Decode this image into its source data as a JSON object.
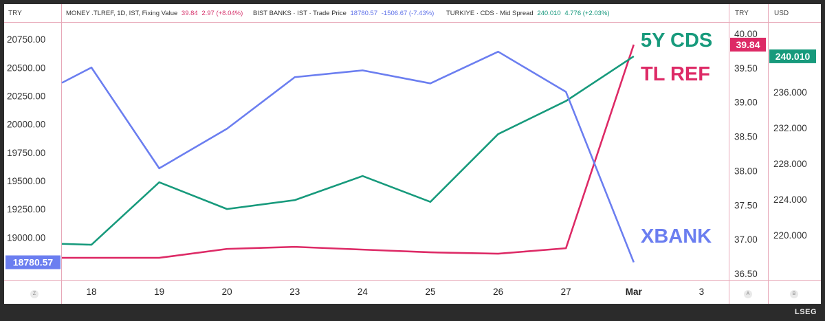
{
  "header": {
    "left_unit": "TRY",
    "right_unit_1": "TRY",
    "right_unit_2": "USD",
    "legend": [
      {
        "label": "MONEY .TLREF, 1D, IST, Fixing Value",
        "value": "39.84",
        "change": "2.97 (+8.04%)",
        "color": "#d6336c"
      },
      {
        "label": "BIST BANKS · IST · Trade Price",
        "value": "18780.57",
        "change": "-1506.67 (-7.43%)",
        "color": "#5b6ee8"
      },
      {
        "label": "TURKIYE · CDS · Mid Spread",
        "value": "240.010",
        "change": "4.776 (+2.03%)",
        "color": "#12967a"
      }
    ]
  },
  "corners": {
    "left": "Z",
    "mid": "A",
    "right": "B"
  },
  "brand": "LSEG",
  "colors": {
    "xbank": "#6b7ef0",
    "tlref": "#dd2a66",
    "cds": "#179a7c"
  },
  "chart_data": {
    "type": "line",
    "x": [
      "18",
      "19",
      "20",
      "23",
      "24",
      "25",
      "26",
      "27",
      "Mar"
    ],
    "x_ticks": [
      "18",
      "19",
      "20",
      "23",
      "24",
      "25",
      "26",
      "27",
      "Mar",
      "3"
    ],
    "series": [
      {
        "name": "XBANK",
        "axis": "left",
        "values": [
          20500,
          19610,
          19960,
          20415,
          20475,
          20360,
          20640,
          20285,
          18780.57
        ],
        "prefix_value": 20365
      },
      {
        "name": "TL REF",
        "axis": "right1",
        "values": [
          36.73,
          36.73,
          36.86,
          36.89,
          36.85,
          36.81,
          36.79,
          36.87,
          39.84
        ],
        "prefix_value": 36.73
      },
      {
        "name": "5Y CDS",
        "axis": "right2",
        "values": [
          218.9,
          225.9,
          222.9,
          223.9,
          226.6,
          223.7,
          231.3,
          235.0,
          240.01
        ],
        "prefix_value": 219.0
      }
    ],
    "left_axis": {
      "ticks": [
        "20750.00",
        "20500.00",
        "20250.00",
        "20000.00",
        "19750.00",
        "19500.00",
        "19250.00",
        "19000.00"
      ],
      "range": [
        18620,
        20890
      ],
      "last_label": "18780.57"
    },
    "right_axis_1": {
      "ticks": [
        "40.00",
        "39.50",
        "39.00",
        "38.50",
        "38.00",
        "37.50",
        "37.00",
        "36.50"
      ],
      "range": [
        36.4,
        40.15
      ],
      "last_label": "39.84"
    },
    "right_axis_2": {
      "ticks": [
        "236.000",
        "232.000",
        "228.000",
        "224.000",
        "220.000"
      ],
      "range": [
        214.9,
        243.7
      ],
      "last_label": "240.010"
    },
    "annotations": [
      "5Y CDS",
      "TL REF",
      "XBANK"
    ]
  }
}
